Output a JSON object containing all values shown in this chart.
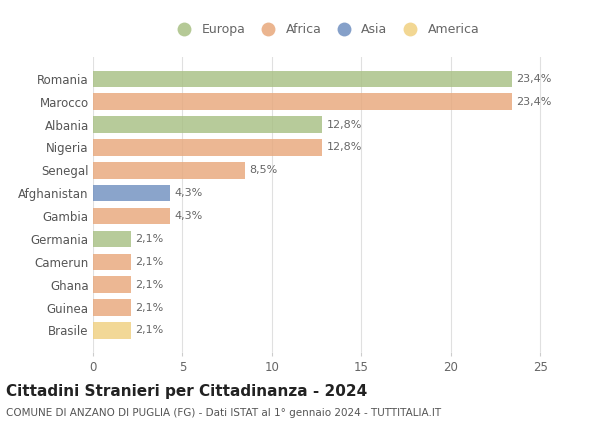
{
  "categories": [
    "Romania",
    "Marocco",
    "Albania",
    "Nigeria",
    "Senegal",
    "Afghanistan",
    "Gambia",
    "Germania",
    "Camerun",
    "Ghana",
    "Guinea",
    "Brasile"
  ],
  "values": [
    23.4,
    23.4,
    12.8,
    12.8,
    8.5,
    4.3,
    4.3,
    2.1,
    2.1,
    2.1,
    2.1,
    2.1
  ],
  "labels": [
    "23,4%",
    "23,4%",
    "12,8%",
    "12,8%",
    "8,5%",
    "4,3%",
    "4,3%",
    "2,1%",
    "2,1%",
    "2,1%",
    "2,1%",
    "2,1%"
  ],
  "continents": [
    "Europa",
    "Africa",
    "Europa",
    "Africa",
    "Africa",
    "Asia",
    "Africa",
    "Europa",
    "Africa",
    "Africa",
    "Africa",
    "America"
  ],
  "colors": {
    "Europa": "#a8c084",
    "Africa": "#e8a87c",
    "Asia": "#7090c0",
    "America": "#f0d080"
  },
  "legend_order": [
    "Europa",
    "Africa",
    "Asia",
    "America"
  ],
  "xlim": [
    0,
    26
  ],
  "xticks": [
    0,
    5,
    10,
    15,
    20,
    25
  ],
  "title": "Cittadini Stranieri per Cittadinanza - 2024",
  "subtitle": "COMUNE DI ANZANO DI PUGLIA (FG) - Dati ISTAT al 1° gennaio 2024 - TUTTITALIA.IT",
  "background_color": "#ffffff",
  "grid_color": "#e0e0e0",
  "bar_height": 0.72,
  "label_fontsize": 8.0,
  "ytick_fontsize": 8.5,
  "xtick_fontsize": 8.5,
  "title_fontsize": 11,
  "subtitle_fontsize": 7.5,
  "legend_fontsize": 9
}
